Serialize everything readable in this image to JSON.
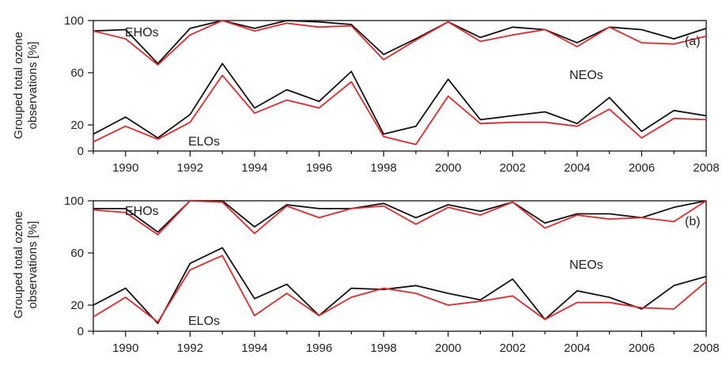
{
  "ylabel_lines": [
    "Grouped total ozone",
    "observations [%]"
  ],
  "colors": {
    "upper_series": "#111111",
    "lower_series": "#e8262a",
    "axis": "#111111"
  },
  "chart_data": [
    {
      "type": "line",
      "panel_label": "(a)",
      "x": [
        1989,
        1990,
        1991,
        1992,
        1993,
        1994,
        1995,
        1996,
        1997,
        1998,
        1999,
        2000,
        2001,
        2002,
        2003,
        2004,
        2005,
        2006,
        2007,
        2008
      ],
      "xlim": [
        1989,
        2008
      ],
      "xticks": [
        1990,
        1992,
        1994,
        1996,
        1998,
        2000,
        2002,
        2004,
        2006,
        2008
      ],
      "ylim": [
        0,
        100
      ],
      "yticks": [
        0,
        20,
        60,
        100
      ],
      "grid": false,
      "annotations": [
        "EHOs",
        "NEOs",
        "ELOs"
      ],
      "series": [
        {
          "group": "EHOs",
          "color": "#111111",
          "values": [
            92,
            93,
            67,
            94,
            100,
            94,
            100,
            99,
            97,
            74,
            86,
            99,
            87,
            95,
            93,
            83,
            95,
            93,
            86,
            94
          ]
        },
        {
          "group": "EHOs",
          "color": "#e8262a",
          "values": [
            92,
            86,
            66,
            89,
            100,
            92,
            98,
            95,
            96,
            70,
            85,
            99,
            84,
            89,
            93,
            80,
            95,
            83,
            82,
            88
          ]
        },
        {
          "group": "ELOs",
          "color": "#111111",
          "values": [
            13,
            26,
            10,
            28,
            67,
            33,
            47,
            38,
            61,
            13,
            19,
            55,
            24,
            27,
            30,
            21,
            41,
            15,
            31,
            27
          ]
        },
        {
          "group": "ELOs",
          "color": "#e8262a",
          "values": [
            7,
            19,
            9,
            22,
            58,
            29,
            39,
            33,
            53,
            11,
            5,
            42,
            21,
            22,
            22,
            19,
            32,
            10,
            25,
            24
          ]
        }
      ]
    },
    {
      "type": "line",
      "panel_label": "(b)",
      "x": [
        1989,
        1990,
        1991,
        1992,
        1993,
        1994,
        1995,
        1996,
        1997,
        1998,
        1999,
        2000,
        2001,
        2002,
        2003,
        2004,
        2005,
        2006,
        2007,
        2008
      ],
      "xlim": [
        1989,
        2008
      ],
      "xticks": [
        1990,
        1992,
        1994,
        1996,
        1998,
        2000,
        2002,
        2004,
        2006,
        2008
      ],
      "ylim": [
        0,
        100
      ],
      "yticks": [
        0,
        20,
        60,
        100
      ],
      "grid": false,
      "annotations": [
        "EHOs",
        "NEOs",
        "ELOs"
      ],
      "series": [
        {
          "group": "EHOs",
          "color": "#111111",
          "values": [
            94,
            94,
            76,
            100,
            100,
            80,
            97,
            94,
            94,
            98,
            87,
            97,
            92,
            99,
            83,
            90,
            90,
            87,
            95,
            100
          ]
        },
        {
          "group": "EHOs",
          "color": "#e8262a",
          "values": [
            93,
            91,
            74,
            100,
            99,
            75,
            96,
            87,
            94,
            96,
            82,
            95,
            89,
            99,
            79,
            89,
            86,
            87,
            84,
            100
          ]
        },
        {
          "group": "ELOs",
          "color": "#111111",
          "values": [
            20,
            33,
            6,
            52,
            64,
            25,
            36,
            12,
            33,
            32,
            35,
            29,
            24,
            40,
            9,
            31,
            26,
            17,
            35,
            42
          ]
        },
        {
          "group": "ELOs",
          "color": "#e8262a",
          "values": [
            11,
            26,
            7,
            47,
            58,
            12,
            29,
            12,
            26,
            33,
            29,
            20,
            23,
            27,
            9,
            22,
            22,
            18,
            17,
            38
          ]
        }
      ]
    }
  ]
}
